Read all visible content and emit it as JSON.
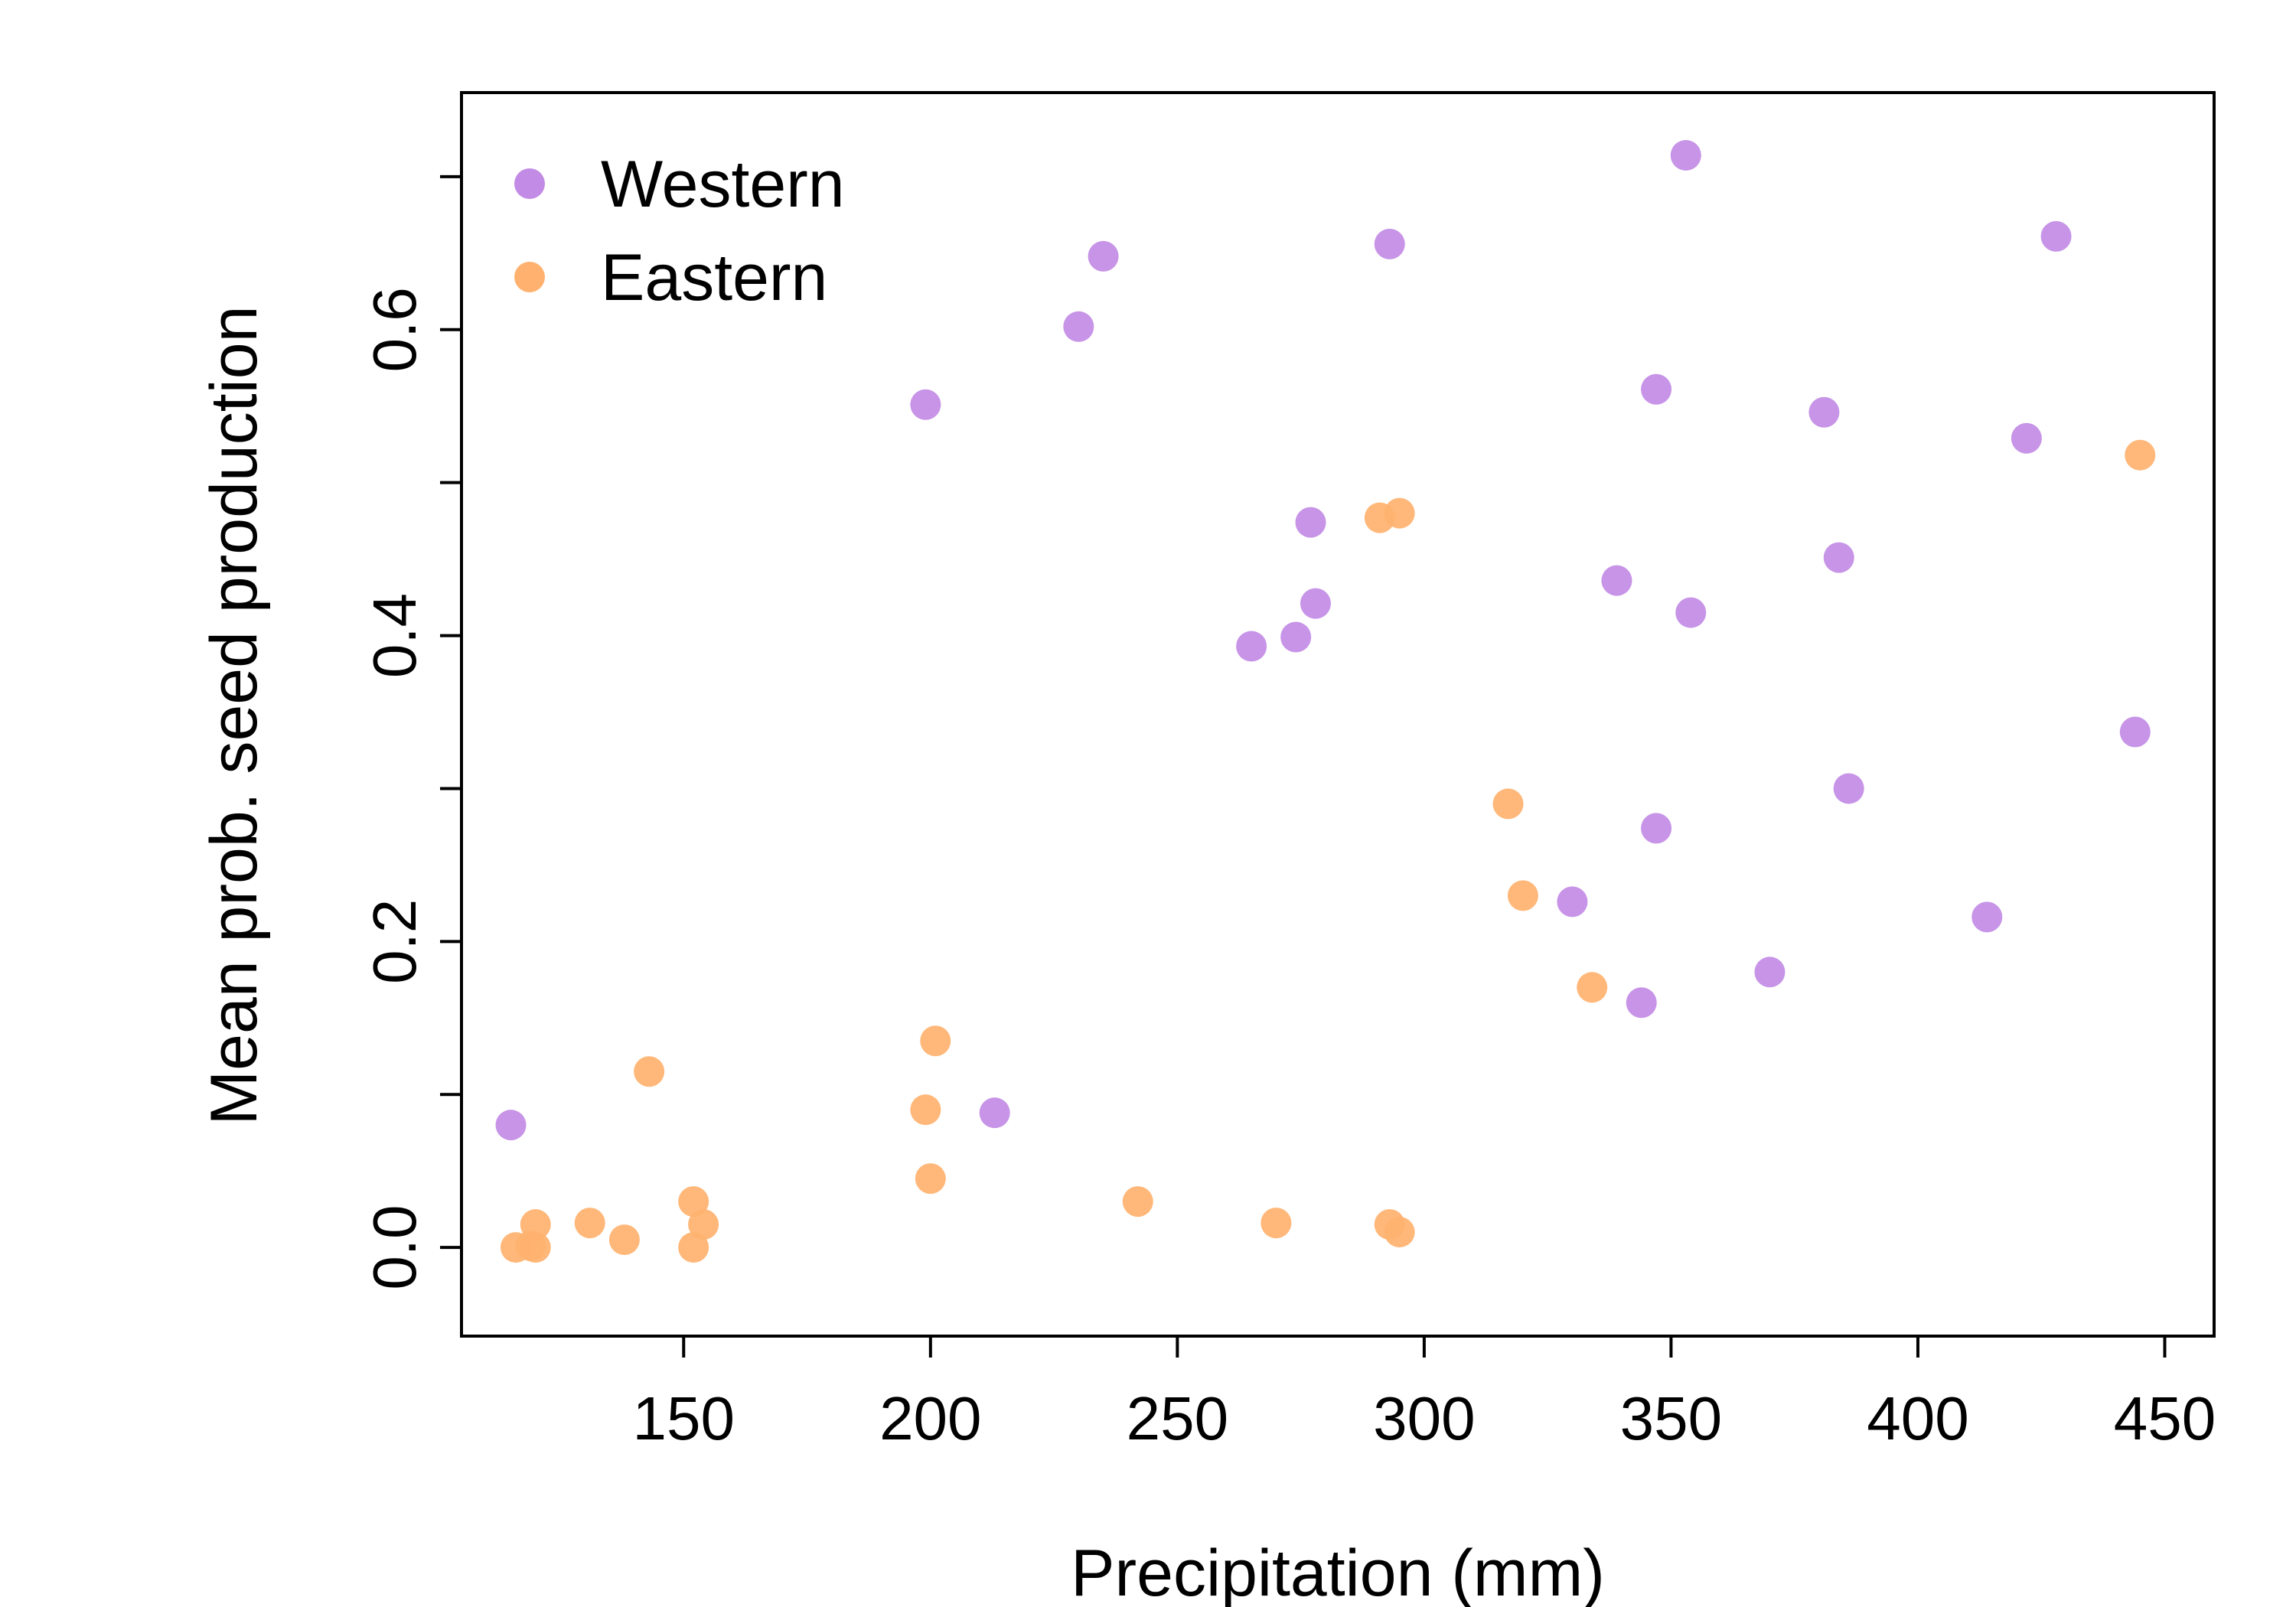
{
  "chart_data": {
    "type": "scatter",
    "title": "",
    "xlabel": "Precipitation (mm)",
    "ylabel": "Mean prob. seed production",
    "xlim": [
      105,
      460
    ],
    "ylim": [
      -0.058,
      0.755
    ],
    "x_ticks": [
      150,
      200,
      250,
      300,
      350,
      400,
      450
    ],
    "y_ticks": [
      0.0,
      0.1,
      0.2,
      0.3,
      0.4,
      0.5,
      0.6,
      0.7
    ],
    "y_tick_labels": [
      "0.0",
      "",
      "0.2",
      "",
      "0.4",
      "",
      "0.6",
      ""
    ],
    "grid": false,
    "legend": "top-left",
    "series": [
      {
        "name": "Western",
        "color": "#C28BE5",
        "points": [
          [
            115,
            0.08
          ],
          [
            199,
            0.551
          ],
          [
            213,
            0.088
          ],
          [
            230,
            0.602
          ],
          [
            235,
            0.648
          ],
          [
            265,
            0.393
          ],
          [
            274,
            0.399
          ],
          [
            277,
            0.474
          ],
          [
            278,
            0.421
          ],
          [
            293,
            0.656
          ],
          [
            330,
            0.226
          ],
          [
            339,
            0.436
          ],
          [
            344,
            0.16
          ],
          [
            347,
            0.561
          ],
          [
            347,
            0.274
          ],
          [
            353,
            0.714
          ],
          [
            354,
            0.415
          ],
          [
            370,
            0.18
          ],
          [
            381,
            0.546
          ],
          [
            384,
            0.451
          ],
          [
            386,
            0.3
          ],
          [
            414,
            0.216
          ],
          [
            422,
            0.529
          ],
          [
            428,
            0.661
          ],
          [
            444,
            0.337
          ]
        ]
      },
      {
        "name": "Eastern",
        "color": "#FFB26F",
        "points": [
          [
            116,
            0.0
          ],
          [
            119,
            0.001
          ],
          [
            120,
            0.015
          ],
          [
            120,
            0.0
          ],
          [
            131,
            0.016
          ],
          [
            138,
            0.005
          ],
          [
            143,
            0.115
          ],
          [
            152,
            0.03
          ],
          [
            152,
            0.0
          ],
          [
            154,
            0.015
          ],
          [
            199,
            0.09
          ],
          [
            200,
            0.045
          ],
          [
            201,
            0.135
          ],
          [
            242,
            0.03
          ],
          [
            270,
            0.016
          ],
          [
            291,
            0.477
          ],
          [
            293,
            0.015
          ],
          [
            295,
            0.48
          ],
          [
            295,
            0.01
          ],
          [
            317,
            0.29
          ],
          [
            320,
            0.23
          ],
          [
            334,
            0.17
          ],
          [
            445,
            0.518
          ]
        ]
      }
    ]
  }
}
